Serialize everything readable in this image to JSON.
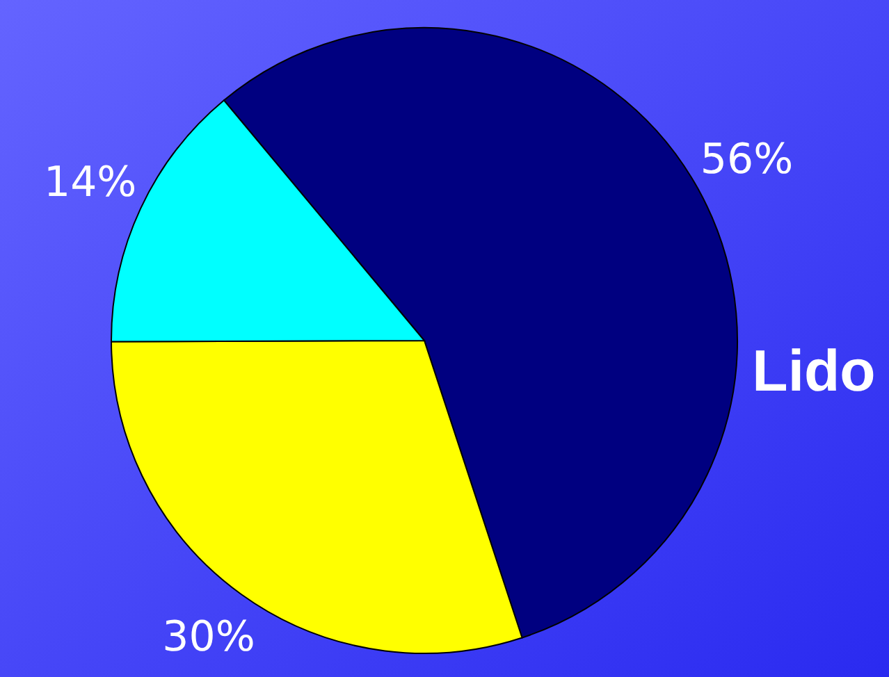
{
  "chart_data": {
    "type": "pie",
    "title": "Lido",
    "categories": [
      null,
      null,
      null
    ],
    "values": [
      56,
      30,
      14
    ],
    "colors": [
      "#000080",
      "#ffff00",
      "#00ffff"
    ],
    "value_labels": [
      "56%",
      "30%",
      "14%"
    ]
  }
}
